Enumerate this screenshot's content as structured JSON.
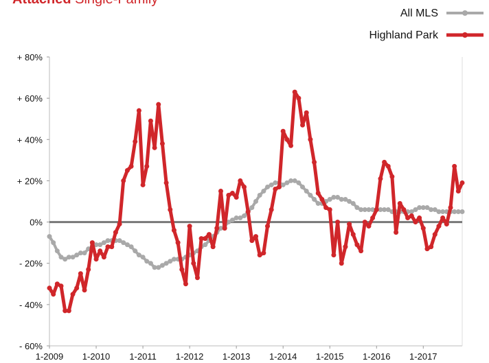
{
  "chart_data": {
    "type": "line",
    "title": [
      "Attached",
      "Single-Family"
    ],
    "title_color": "#d0262a",
    "categories": [
      "1-2009",
      null,
      null,
      null,
      null,
      null,
      null,
      null,
      null,
      null,
      null,
      null,
      "1-2010",
      null,
      null,
      null,
      null,
      null,
      null,
      null,
      null,
      null,
      null,
      null,
      "1-2011",
      null,
      null,
      null,
      null,
      null,
      null,
      null,
      null,
      null,
      null,
      null,
      "1-2012",
      null,
      null,
      null,
      null,
      null,
      null,
      null,
      null,
      null,
      null,
      null,
      "1-2013",
      null,
      null,
      null,
      null,
      null,
      null,
      null,
      null,
      null,
      null,
      null,
      "1-2014",
      null,
      null,
      null,
      null,
      null,
      null,
      null,
      null,
      null,
      null,
      null,
      "1-2015",
      null,
      null,
      null,
      null,
      null,
      null,
      null,
      null,
      null,
      null,
      null,
      "1-2016",
      null,
      null,
      null,
      null,
      null,
      null,
      null,
      null,
      null,
      null,
      null,
      "1-2017",
      null,
      null,
      null,
      null,
      null,
      null,
      null,
      null,
      null,
      null
    ],
    "series": [
      {
        "name": "All MLS",
        "color": "#a9a9a9",
        "values": [
          -7,
          -10,
          -14,
          -17,
          -18,
          -17,
          -17,
          -16,
          -15,
          -15,
          -13,
          -12,
          -11,
          -11,
          -10,
          -9,
          -9,
          -9,
          -9,
          -10,
          -11,
          -12,
          -14,
          -16,
          -17,
          -19,
          -20,
          -22,
          -22,
          -21,
          -20,
          -19,
          -18,
          -18,
          -18,
          -17,
          -16,
          -15,
          -14,
          -12,
          -11,
          -9,
          -7,
          -5,
          -3,
          -2,
          0,
          1,
          2,
          2,
          3,
          5,
          7,
          10,
          13,
          15,
          17,
          18,
          19,
          19,
          18,
          19,
          20,
          20,
          19,
          17,
          15,
          13,
          11,
          9,
          9,
          10,
          11,
          12,
          12,
          11,
          11,
          10,
          9,
          7,
          6,
          6,
          6,
          6,
          6,
          6,
          6,
          6,
          5,
          5,
          5,
          5,
          5,
          5,
          6,
          7,
          7,
          7,
          6,
          6,
          5,
          5,
          5,
          5,
          5,
          5,
          5
        ]
      },
      {
        "name": "Highland Park",
        "color": "#d0262a",
        "values": [
          -32,
          -35,
          -30,
          -31,
          -43,
          -43,
          -35,
          -32,
          -25,
          -33,
          -23,
          -10,
          -18,
          -14,
          -17,
          -12,
          -12,
          -5,
          -1,
          20,
          25,
          27,
          39,
          54,
          18,
          27,
          49,
          36,
          57,
          38,
          19,
          6,
          -4,
          -10,
          -23,
          -30,
          -2,
          -20,
          -27,
          -8,
          -8,
          -6,
          -12,
          -3,
          15,
          -3,
          13,
          14,
          12,
          20,
          17,
          5,
          -9,
          -7,
          -16,
          -15,
          -2,
          6,
          16,
          17,
          44,
          40,
          37,
          63,
          60,
          47,
          53,
          40,
          29,
          14,
          11,
          7,
          6,
          -16,
          0,
          -20,
          -12,
          -1,
          -6,
          -11,
          -14,
          0,
          -2,
          2,
          6,
          21,
          29,
          27,
          22,
          -5,
          9,
          6,
          2,
          3,
          0,
          2,
          -3,
          -13,
          -12,
          -6,
          -2,
          2,
          -1,
          7,
          27,
          15,
          19
        ]
      }
    ],
    "ylim": [
      -60,
      80
    ],
    "yticks": [
      {
        "value": -60,
        "label": "- 60%"
      },
      {
        "value": -40,
        "label": "- 40%"
      },
      {
        "value": -20,
        "label": "- 20%"
      },
      {
        "value": 0,
        "label": "0%"
      },
      {
        "value": 20,
        "label": "+ 20%"
      },
      {
        "value": 40,
        "label": "+ 40%"
      },
      {
        "value": 60,
        "label": "+ 60%"
      },
      {
        "value": 80,
        "label": "+ 80%"
      }
    ],
    "zero_line": true,
    "legend": "top-right"
  }
}
